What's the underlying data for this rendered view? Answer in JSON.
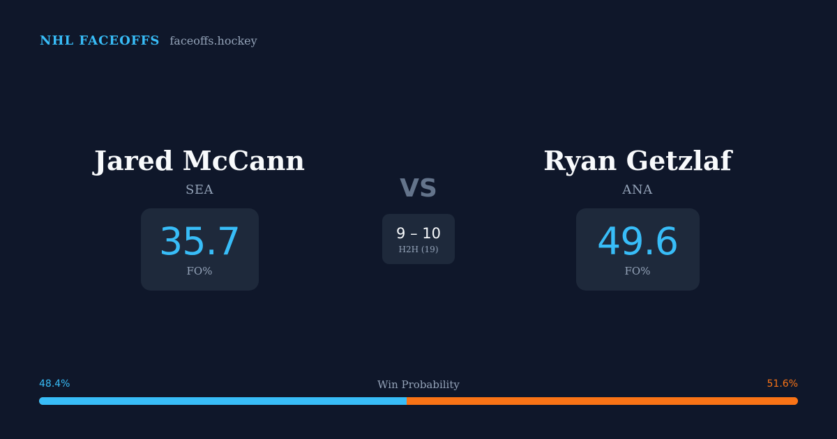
{
  "brand": {
    "name": "NHL FACEOFFS",
    "domain": "faceoffs.hockey"
  },
  "players": {
    "left": {
      "name": "Jared McCann",
      "team": "SEA",
      "fo_pct": "35.7",
      "fo_label": "FO%"
    },
    "right": {
      "name": "Ryan Getzlaf",
      "team": "ANA",
      "fo_pct": "49.6",
      "fo_label": "FO%"
    }
  },
  "matchup": {
    "vs_label": "VS",
    "h2h_score": "9 – 10",
    "h2h_label": "H2H (19)"
  },
  "win_probability": {
    "title": "Win Probability",
    "left_label": "48.4%",
    "right_label": "51.6%",
    "left_fraction": 0.484,
    "right_fraction": 0.516,
    "colors": {
      "left": "#38bdf8",
      "right": "#f97316"
    }
  },
  "colors": {
    "background": "#0f172a",
    "card": "#1e293b",
    "accent": "#38bdf8",
    "muted": "#94a3b8"
  }
}
